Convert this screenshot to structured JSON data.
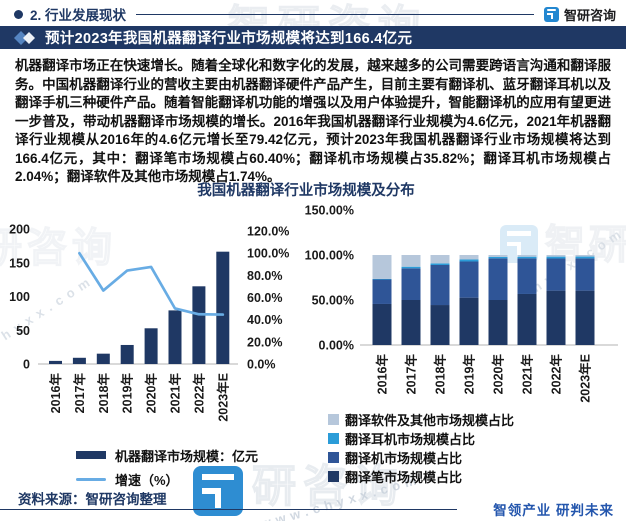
{
  "page": {
    "section_header": "2. 行业发展现状",
    "brand": "智研咨询",
    "headline": "预计2023年我国机器翻译行业市场规模将达到166.4亿元",
    "body_text": "机器翻译市场正在快速增长。随着全球化和数字化的发展，越来越多的公司需要跨语言沟通和翻译服务。中国机器翻译行业的营收主要由机器翻译硬件产品产生，目前主要有翻译机、蓝牙翻译耳机以及翻译手机三种硬件产品。随着智能翻译机功能的增强以及用户体验提升，智能翻译机的应用有望更进一步普及，带动机器翻译市场规模的增长。2016年我国机器翻译行业规模为4.6亿元，2021年机器翻译行业规模从2016年的4.6亿元增长至79.42亿元，预计2023年我国机器翻译行业市场规模将达到166.4亿元，其中：翻译笔市场规模占60.40%；翻译机市场规模占35.82%；翻译耳机市场规模占2.04%；翻译软件及其他市场规模占1.74%。",
    "source_note": "资料来源：智研咨询整理",
    "footer_slogan": "智领产业 研判未来"
  },
  "watermarks": {
    "brand": "智研咨询",
    "brand_short": "智研",
    "brand_part": "研咨询",
    "url": "www.chyxx.com",
    "url_short": "hyxx.com"
  },
  "colors": {
    "navy": "#1f3864",
    "royal": "#2f5597",
    "cyan": "#2b9cd8",
    "light_blue_gray": "#b6c7db",
    "line_blue": "#68ace4",
    "logo_blue": "#2387d0",
    "slogan_blue": "#2456ad"
  },
  "chart_data": [
    {
      "type": "bar",
      "subtype": "bar+line combo, dual axis",
      "title": "我国机器翻译行业市场规模及分布",
      "categories": [
        "2016年",
        "2017年",
        "2018年",
        "2019年",
        "2020年",
        "2021年",
        "2022年",
        "2023年E"
      ],
      "series": [
        {
          "name": "机器翻译市场规模：亿元",
          "type": "bar",
          "axis": "left",
          "values": [
            4.6,
            9.2,
            15.3,
            28.2,
            52.9,
            79.42,
            115.1,
            166.4
          ],
          "color": "#1f3864"
        },
        {
          "name": "增速（%）",
          "type": "line",
          "axis": "right",
          "values": [
            null,
            100.0,
            66.3,
            84.3,
            87.6,
            50.1,
            44.9,
            44.6
          ],
          "color": "#68ace4"
        }
      ],
      "left_axis": {
        "min": 0,
        "max": 200,
        "step": 50,
        "labels": [
          "0",
          "50",
          "100",
          "150",
          "200"
        ]
      },
      "right_axis": {
        "min": 0,
        "max": 120,
        "step": 20,
        "labels": [
          "0.0%",
          "20.0%",
          "40.0%",
          "60.0%",
          "80.0%",
          "100.0%",
          "120.0%"
        ]
      },
      "grid": false,
      "legend_position": "bottom-left"
    },
    {
      "type": "bar",
      "subtype": "100% stacked bar",
      "categories": [
        "2016年",
        "2017年",
        "2018年",
        "2019年",
        "2020年",
        "2021年",
        "2022年",
        "2023年E"
      ],
      "series": [
        {
          "name": "翻译笔市场规模占比",
          "values": [
            45.6,
            50.0,
            44.4,
            52.6,
            50.0,
            56.7,
            60.4,
            60.4
          ],
          "color": "#1f3864"
        },
        {
          "name": "翻译机市场规模占比",
          "values": [
            27.2,
            35.2,
            44.5,
            40.2,
            46.3,
            39.6,
            35.7,
            35.82
          ],
          "color": "#2f5597"
        },
        {
          "name": "翻译耳机市场规模占比",
          "values": [
            0.7,
            1.8,
            1.8,
            2.2,
            1.5,
            1.8,
            2.1,
            2.04
          ],
          "color": "#2b9cd8"
        },
        {
          "name": "翻译软件及其他市场规模占比",
          "values": [
            26.5,
            13.0,
            9.3,
            5.0,
            2.2,
            1.9,
            1.8,
            1.74
          ],
          "color": "#b6c7db"
        }
      ],
      "y_axis": {
        "min": 0,
        "max": 150,
        "step": 50,
        "labels": [
          "0.00%",
          "50.00%",
          "100.00%",
          "150.00%"
        ]
      },
      "grid": false,
      "legend_position": "bottom-right",
      "legend_order": [
        "翻译软件及其他市场规模占比",
        "翻译耳机市场规模占比",
        "翻译机市场规模占比",
        "翻译笔市场规模占比"
      ]
    }
  ]
}
